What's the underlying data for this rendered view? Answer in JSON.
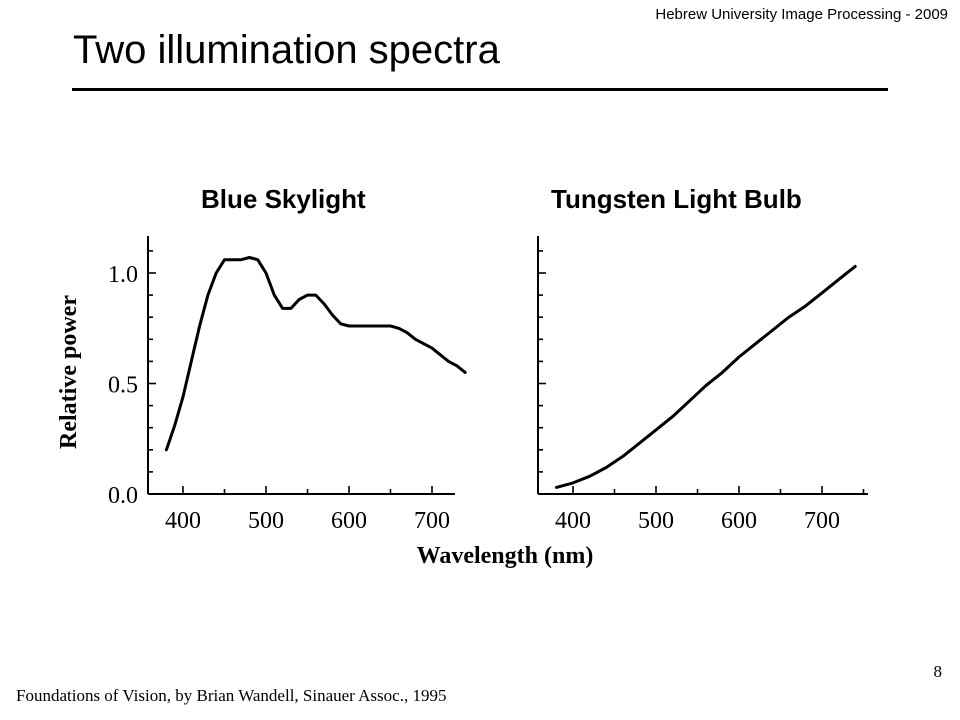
{
  "header": "Hebrew University Image Processing - 2009",
  "title": "Two illumination spectra",
  "slide_number": "8",
  "footer": "Foundations of Vision, by Brian Wandell, Sinauer Assoc., 1995",
  "chart_data": [
    {
      "type": "line",
      "title": "Blue Skylight",
      "xlabel": "",
      "ylabel": "Relative power",
      "xlim": [
        360,
        750
      ],
      "ylim": [
        0,
        1.15
      ],
      "x_ticks": [
        "400",
        "500",
        "600",
        "700"
      ],
      "y_ticks": [
        "0.0",
        "0.5",
        "1.0"
      ],
      "x": [
        380,
        390,
        400,
        410,
        420,
        430,
        440,
        450,
        460,
        470,
        480,
        490,
        500,
        510,
        520,
        530,
        540,
        550,
        560,
        570,
        580,
        590,
        600,
        610,
        620,
        630,
        640,
        650,
        660,
        670,
        680,
        690,
        700,
        710,
        720,
        730,
        740
      ],
      "values": [
        0.2,
        0.31,
        0.44,
        0.6,
        0.76,
        0.9,
        1.0,
        1.06,
        1.06,
        1.06,
        1.07,
        1.06,
        1.0,
        0.9,
        0.84,
        0.84,
        0.88,
        0.9,
        0.9,
        0.86,
        0.81,
        0.77,
        0.76,
        0.76,
        0.76,
        0.76,
        0.76,
        0.76,
        0.75,
        0.73,
        0.7,
        0.68,
        0.66,
        0.63,
        0.6,
        0.58,
        0.55
      ]
    },
    {
      "type": "line",
      "title": "Tungsten Light Bulb",
      "xlabel": "Wavelength (nm)",
      "ylabel": "",
      "xlim": [
        360,
        750
      ],
      "ylim": [
        0,
        1.15
      ],
      "x_ticks": [
        "400",
        "500",
        "600",
        "700"
      ],
      "y_ticks": [],
      "x": [
        380,
        400,
        420,
        440,
        460,
        480,
        500,
        520,
        540,
        560,
        580,
        600,
        620,
        640,
        660,
        680,
        700,
        720,
        740
      ],
      "values": [
        0.03,
        0.05,
        0.08,
        0.12,
        0.17,
        0.23,
        0.29,
        0.35,
        0.42,
        0.49,
        0.55,
        0.62,
        0.68,
        0.74,
        0.8,
        0.85,
        0.91,
        0.97,
        1.03
      ]
    }
  ]
}
